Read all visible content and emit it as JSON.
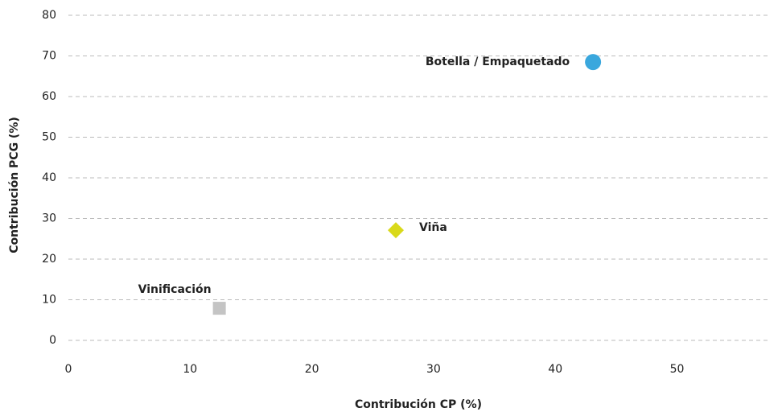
{
  "chart_data": {
    "type": "scatter",
    "xlabel": "Contribución CP (%)",
    "ylabel": "Contribución PCG (%)",
    "series": [
      {
        "name": "Botella / Empaquetado",
        "color": "#3aa7dd",
        "marker": "circle",
        "x": [
          43.1
        ],
        "values": [
          68.5
        ]
      },
      {
        "name": "Viña",
        "color": "#d9d91a",
        "marker": "diamond",
        "x": [
          26.9
        ],
        "values": [
          27.1
        ]
      },
      {
        "name": "Vinificación",
        "color": "#c4c4c4",
        "marker": "square",
        "x": [
          12.4
        ],
        "values": [
          7.9
        ]
      }
    ],
    "xlim": [
      0,
      57.5
    ],
    "xticks": [
      0,
      10,
      20,
      30,
      40,
      50
    ],
    "ylim": [
      0,
      80
    ],
    "yticks": [
      0,
      10,
      20,
      30,
      40,
      50,
      60,
      70,
      80
    ],
    "grid": true
  }
}
